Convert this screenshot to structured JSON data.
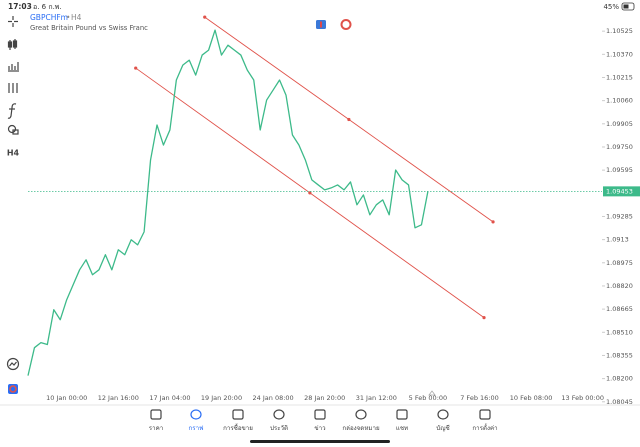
{
  "status_bar": {
    "time": "17:03",
    "date": "อ. 6 ก.พ.",
    "battery": "45%"
  },
  "chart_data": {
    "type": "line",
    "title": "GBPCHFm",
    "period": "H4",
    "subtitle": "Great Britain Pound vs Swiss Franc",
    "color": "#3dba8a",
    "categories": [
      null,
      null,
      null,
      null,
      null,
      null,
      "10 Jan 00:00",
      null,
      null,
      null,
      null,
      null,
      null,
      null,
      "12 Jan 16:00",
      null,
      null,
      null,
      null,
      null,
      null,
      null,
      "17 Jan 04:00",
      null,
      null,
      null,
      null,
      null,
      null,
      null,
      "19 Jan 20:00",
      null,
      null,
      null,
      null,
      null,
      null,
      null,
      "24 Jan 08:00",
      null,
      null,
      null,
      null,
      null,
      null,
      null,
      "28 Jan 20:00",
      null,
      null,
      null,
      null,
      null,
      null,
      null,
      "31 Jan 12:00",
      null,
      null,
      null,
      null,
      null,
      null,
      null,
      "5 Feb 00:00",
      null,
      null,
      null,
      null,
      null,
      null,
      null,
      "7 Feb 16:00",
      null,
      null,
      null,
      null,
      null,
      null,
      null,
      "10 Feb 08:00",
      null,
      null,
      null,
      null,
      null,
      null,
      null,
      "13 Feb 00:00"
    ],
    "values": [
      1.0822,
      1.08407,
      1.08441,
      1.08428,
      1.08661,
      1.08594,
      1.08728,
      1.08828,
      1.08928,
      1.08995,
      1.08895,
      1.08928,
      1.09029,
      1.08928,
      1.09062,
      1.09029,
      1.09129,
      1.09095,
      1.09182,
      1.09663,
      1.09897,
      1.09763,
      1.09864,
      1.10198,
      1.10298,
      1.10331,
      1.10231,
      1.10365,
      1.10398,
      1.10532,
      1.10365,
      1.10431,
      1.10398,
      1.10365,
      1.10264,
      1.10198,
      1.09864,
      1.10064,
      1.10131,
      1.10198,
      1.10097,
      1.0983,
      1.09763,
      1.09663,
      1.0953,
      1.09496,
      1.09463,
      1.09476,
      1.09496,
      1.09463,
      1.09516,
      1.09363,
      1.09429,
      1.09296,
      1.09363,
      1.09396,
      1.09296,
      1.09596,
      1.0953,
      1.09496,
      1.09209,
      1.09229,
      1.09453,
      null,
      null,
      null,
      null,
      null,
      null,
      null,
      null,
      null,
      null,
      null,
      null,
      null,
      null,
      null,
      null,
      null,
      null,
      null,
      null,
      null,
      null,
      null,
      null
    ],
    "current_price": 1.09453,
    "current_price_color": "#3dba8a",
    "ylim": [
      1.0799,
      1.107
    ],
    "yticks": [
      1.10525,
      {
        "value": 1.1037,
        "label": "1.10370"
      },
      1.10215,
      {
        "value": 1.1006,
        "label": "1.10060"
      },
      1.09905,
      {
        "value": 1.0975,
        "label": "1.09750"
      },
      1.09595,
      1.09285,
      1.0913,
      1.08975,
      {
        "value": 1.0882,
        "label": "1.08820"
      },
      1.08665,
      {
        "value": 1.0851,
        "label": "1.08510"
      },
      1.08355,
      {
        "value": 1.082,
        "label": "1.08200"
      },
      1.08045
    ],
    "trendlines": [
      {
        "x": [
          27.4,
          72.1
        ],
        "y": [
          1.10619,
          1.09249
        ],
        "color": "#e0524a"
      },
      {
        "x": [
          16.7,
          70.7
        ],
        "y": [
          1.10278,
          1.08608
        ],
        "color": "#e0524a"
      }
    ]
  },
  "nav": {
    "items": [
      "ราคา",
      "กราฟ",
      "การซื้อขาย",
      "ประวัติ",
      "ข่าว",
      "กล่องจดหมาย",
      "แชท",
      "บัญชี",
      "การตั้งค่า"
    ],
    "active": 1,
    "active_color": "#2a6df4"
  }
}
